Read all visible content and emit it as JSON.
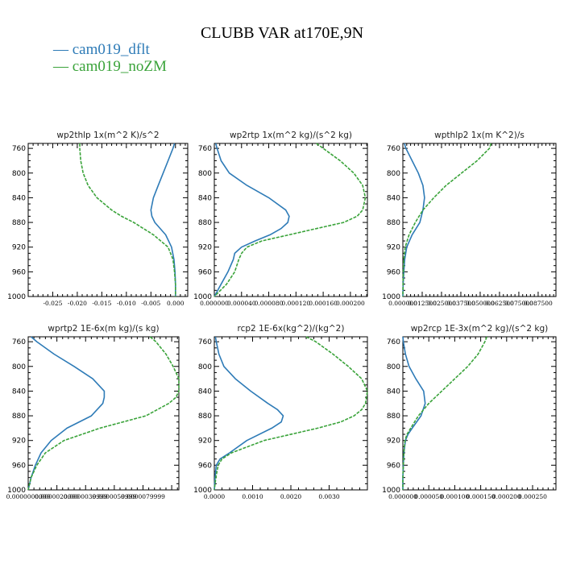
{
  "title": "CLUBB VAR at170E,9N",
  "legend": [
    {
      "label": "cam019_dflt",
      "color": "#2e7bb7"
    },
    {
      "label": "cam019_noZM",
      "color": "#3aa33a"
    }
  ],
  "chart_data": [
    {
      "type": "line",
      "title": "wp2thlp  1x(m^2 K)/s^2",
      "xlim": [
        -0.03,
        0.0025
      ],
      "ylim": [
        1000,
        752
      ],
      "x_ticks": [
        -0.025,
        -0.02,
        -0.015,
        -0.01,
        -0.005,
        0.0
      ],
      "x_tick_labels": [
        "-0.025",
        "-0.020",
        "-0.015",
        "-0.010",
        "-0.005",
        "0.000"
      ],
      "y_ticks": [
        760,
        800,
        840,
        880,
        920,
        960,
        1000
      ],
      "y_tick_labels": [
        "760",
        "800",
        "840",
        "880",
        "920",
        "960",
        "1000"
      ],
      "y": [
        752,
        760,
        780,
        800,
        820,
        840,
        860,
        870,
        880,
        900,
        920,
        940,
        960,
        980,
        1000
      ],
      "series": [
        {
          "name": "cam019_dflt",
          "color": "#2e7bb7",
          "values": [
            -0.0002,
            -0.0005,
            -0.0015,
            -0.0025,
            -0.0035,
            -0.0045,
            -0.005,
            -0.0048,
            -0.0042,
            -0.002,
            -0.0008,
            -0.0003,
            -0.0001,
            0.0,
            0.0
          ]
        },
        {
          "name": "cam019_noZM",
          "color": "#3aa33a",
          "values": [
            -0.0195,
            -0.0195,
            -0.0193,
            -0.0188,
            -0.0178,
            -0.016,
            -0.013,
            -0.011,
            -0.0085,
            -0.0045,
            -0.0015,
            -0.0005,
            -0.0002,
            0.0,
            0.0
          ]
        }
      ]
    },
    {
      "type": "line",
      "title": "wp2rtp  1x(m^2 kg)/(s^2 kg)",
      "xlim": [
        0,
        0.000225
      ],
      "ylim": [
        1000,
        752
      ],
      "x_ticks": [
        0,
        4e-05,
        8e-05,
        0.00012,
        0.00016,
        0.0002
      ],
      "x_tick_labels": [
        "0.000000",
        "0.000040",
        "0.000080",
        "0.000120",
        "0.000160",
        "0.000200"
      ],
      "y_ticks": [
        760,
        800,
        840,
        880,
        920,
        960,
        1000
      ],
      "y_tick_labels": [
        "760",
        "800",
        "840",
        "880",
        "920",
        "960",
        "1000"
      ],
      "y": [
        752,
        760,
        780,
        800,
        820,
        840,
        860,
        870,
        880,
        890,
        900,
        910,
        920,
        930,
        940,
        960,
        980,
        1000
      ],
      "series": [
        {
          "name": "cam019_dflt",
          "color": "#2e7bb7",
          "values": [
            2e-06,
            4e-06,
            1e-05,
            2.2e-05,
            4.8e-05,
            8e-05,
            0.000105,
            0.00011,
            0.000108,
            9.8e-05,
            8.2e-05,
            6e-05,
            4e-05,
            3e-05,
            2.8e-05,
            2e-05,
            1e-05,
            0.0
          ]
        },
        {
          "name": "cam019_noZM",
          "color": "#3aa33a",
          "values": [
            0.00015,
            0.00016,
            0.000185,
            0.000205,
            0.000218,
            0.000222,
            0.000218,
            0.00021,
            0.00019,
            0.00015,
            0.00011,
            7e-05,
            4.8e-05,
            4e-05,
            3.6e-05,
            3e-05,
            1.8e-05,
            0.0
          ]
        }
      ]
    },
    {
      "type": "line",
      "title": "wpthlp2  1x(m K^2)/s",
      "xlim": [
        0,
        0.099
      ],
      "ylim": [
        1000,
        752
      ],
      "x_ticks": [
        0,
        0.0125,
        0.025,
        0.0375,
        0.05,
        0.0625,
        0.075,
        0.0875
      ],
      "x_tick_labels": [
        "0.000000",
        "0.012500",
        "0.025000",
        "0.037500",
        "0.050000",
        "0.062500",
        "0.075000",
        "0.087500"
      ],
      "y_ticks": [
        760,
        800,
        840,
        880,
        920,
        960,
        1000
      ],
      "y_tick_labels": [
        "760",
        "800",
        "840",
        "880",
        "920",
        "960",
        "1000"
      ],
      "y": [
        752,
        760,
        780,
        800,
        820,
        840,
        860,
        880,
        900,
        920,
        940,
        960,
        980,
        1000
      ],
      "series": [
        {
          "name": "cam019_dflt",
          "color": "#2e7bb7",
          "values": [
            0.001,
            0.002,
            0.006,
            0.01,
            0.013,
            0.014,
            0.013,
            0.011,
            0.006,
            0.0025,
            0.0012,
            0.0006,
            0.0002,
            0.0
          ]
        },
        {
          "name": "cam019_noZM",
          "color": "#3aa33a",
          "values": [
            0.057,
            0.056,
            0.048,
            0.038,
            0.028,
            0.02,
            0.013,
            0.008,
            0.004,
            0.0015,
            0.0006,
            0.0003,
            0.0001,
            0.0
          ]
        }
      ]
    },
    {
      "type": "line",
      "title": "wprtp2  1E-6x(m kg)/(s kg)",
      "xlim": [
        0,
        1.05e-05
      ],
      "ylim": [
        1000,
        752
      ],
      "x_ticks": [
        0,
        2e-06,
        4e-06,
        6e-06,
        8e-06
      ],
      "x_tick_labels": [
        "0.0000000000",
        "0.0000020000",
        "0.0000039999",
        "0.0000059999",
        "0.0000079999"
      ],
      "y_ticks": [
        760,
        800,
        840,
        880,
        920,
        960,
        1000
      ],
      "y_tick_labels": [
        "760",
        "800",
        "840",
        "880",
        "920",
        "960",
        "1000"
      ],
      "y": [
        752,
        760,
        780,
        800,
        820,
        840,
        850,
        860,
        880,
        900,
        920,
        940,
        960,
        980,
        1000
      ],
      "series": [
        {
          "name": "cam019_dflt",
          "color": "#2e7bb7",
          "values": [
            2e-07,
            6e-07,
            1.8e-06,
            3.2e-06,
            4.5e-06,
            5.3e-06,
            5.3e-06,
            5.2e-06,
            4.4e-06,
            2.7e-06,
            1.6e-06,
            9e-07,
            5e-07,
            2e-07,
            0.0
          ]
        },
        {
          "name": "cam019_noZM",
          "color": "#3aa33a",
          "values": [
            8.5e-06,
            8.9e-06,
            9.6e-06,
            1.01e-05,
            1.05e-05,
            1.05e-05,
            1.03e-05,
            9.8e-06,
            8.2e-06,
            5e-06,
            2.5e-06,
            1.2e-06,
            6e-07,
            2e-07,
            0.0
          ]
        }
      ]
    },
    {
      "type": "line",
      "title": "rcp2  1E-6x(kg^2)/(kg^2)",
      "xlim": [
        0,
        0.004
      ],
      "ylim": [
        1000,
        752
      ],
      "x_ticks": [
        0,
        0.001,
        0.002,
        0.003
      ],
      "x_tick_labels": [
        "0.0000",
        "0.0010",
        "0.0020",
        "0.0030"
      ],
      "y_ticks": [
        760,
        800,
        840,
        880,
        920,
        960,
        1000
      ],
      "y_tick_labels": [
        "760",
        "800",
        "840",
        "880",
        "920",
        "960",
        "1000"
      ],
      "y": [
        752,
        760,
        780,
        800,
        820,
        840,
        860,
        870,
        880,
        890,
        900,
        920,
        940,
        950,
        960,
        980,
        1000
      ],
      "series": [
        {
          "name": "cam019_dflt",
          "color": "#2e7bb7",
          "values": [
            3e-05,
            5e-05,
            0.00012,
            0.00025,
            0.00055,
            0.00095,
            0.0014,
            0.00165,
            0.0018,
            0.00175,
            0.0015,
            0.00085,
            0.0004,
            0.00015,
            5e-05,
            2e-05,
            0.0
          ]
        },
        {
          "name": "cam019_noZM",
          "color": "#3aa33a",
          "values": [
            0.0024,
            0.00265,
            0.0031,
            0.0035,
            0.00385,
            0.004,
            0.00395,
            0.00385,
            0.00365,
            0.0033,
            0.0027,
            0.0013,
            0.00045,
            0.0002,
            0.0001,
            4e-05,
            0.0
          ]
        }
      ]
    },
    {
      "type": "line",
      "title": "wp2rcp  1E-3x(m^2 kg)/(s^2 kg)",
      "xlim": [
        0,
        0.000295
      ],
      "ylim": [
        1000,
        752
      ],
      "x_ticks": [
        0,
        5e-05,
        0.0001,
        0.00015,
        0.0002,
        0.00025
      ],
      "x_tick_labels": [
        "0.000000",
        "0.000050",
        "0.000100",
        "0.000150",
        "0.000200",
        "0.000250"
      ],
      "y_ticks": [
        760,
        800,
        840,
        880,
        920,
        960,
        1000
      ],
      "y_tick_labels": [
        "760",
        "800",
        "840",
        "880",
        "920",
        "960",
        "1000"
      ],
      "y": [
        752,
        760,
        780,
        800,
        820,
        840,
        860,
        880,
        900,
        910,
        920,
        940,
        960,
        980,
        1000
      ],
      "series": [
        {
          "name": "cam019_dflt",
          "color": "#2e7bb7",
          "values": [
            0.0,
            1e-06,
            5e-06,
            1.2e-05,
            2.5e-05,
            4e-05,
            4.3e-05,
            3.5e-05,
            1.8e-05,
            1e-05,
            5e-06,
            2e-06,
            1e-06,
            0.0,
            0.0
          ]
        },
        {
          "name": "cam019_noZM",
          "color": "#3aa33a",
          "values": [
            0.000162,
            0.000158,
            0.000145,
            0.000125,
            0.0001,
            7.5e-05,
            5e-05,
            3e-05,
            1.5e-05,
            8e-06,
            4e-06,
            2e-06,
            1e-06,
            0.0,
            0.0
          ]
        }
      ]
    }
  ]
}
